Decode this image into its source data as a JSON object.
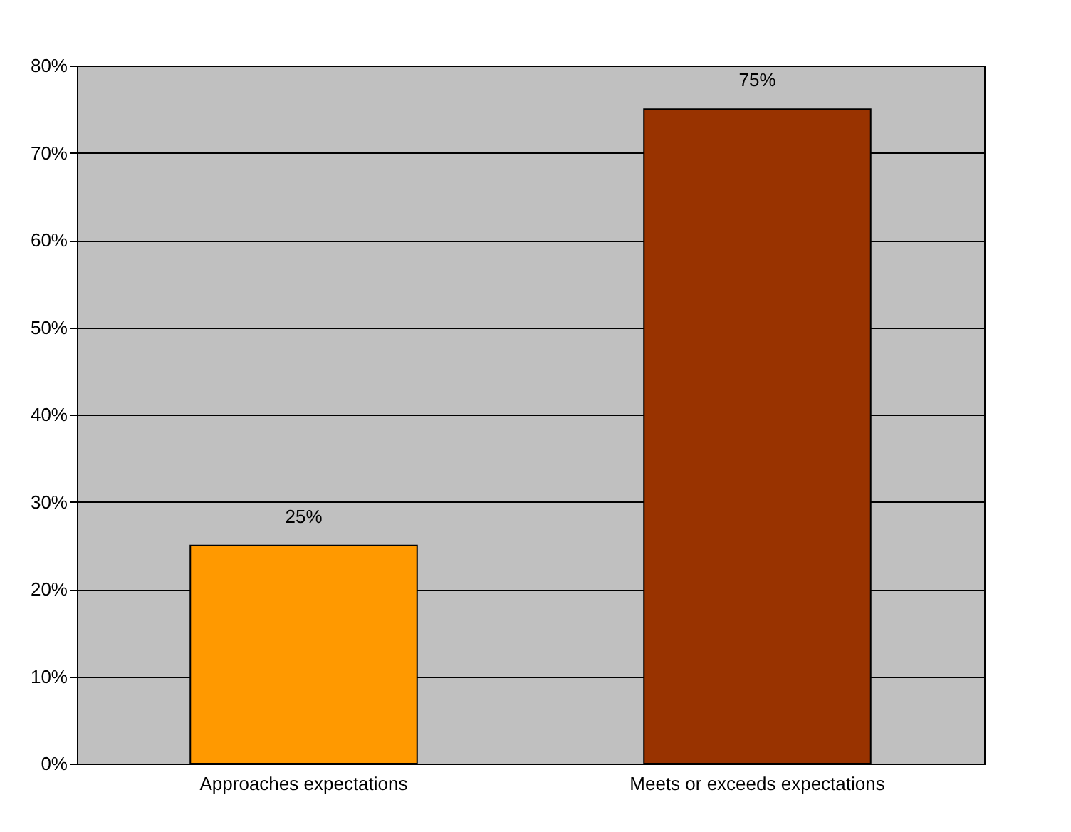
{
  "chart_data": {
    "type": "bar",
    "categories": [
      "Approaches expectations",
      "Meets or exceeds expectations"
    ],
    "values": [
      25,
      75
    ],
    "colors": [
      "#ff9900",
      "#993300"
    ],
    "ylim": [
      0,
      80
    ],
    "yticks": [
      {
        "value": 0,
        "label": "0%"
      },
      {
        "value": 10,
        "label": "10%"
      },
      {
        "value": 20,
        "label": "20%"
      },
      {
        "value": 30,
        "label": "30%"
      },
      {
        "value": 40,
        "label": "40%"
      },
      {
        "value": 50,
        "label": "50%"
      },
      {
        "value": 60,
        "label": "60%"
      },
      {
        "value": 70,
        "label": "70%"
      },
      {
        "value": 80,
        "label": "80%"
      }
    ],
    "grid": "y",
    "legend": false,
    "value_labels": [
      "25%",
      "75%"
    ]
  }
}
